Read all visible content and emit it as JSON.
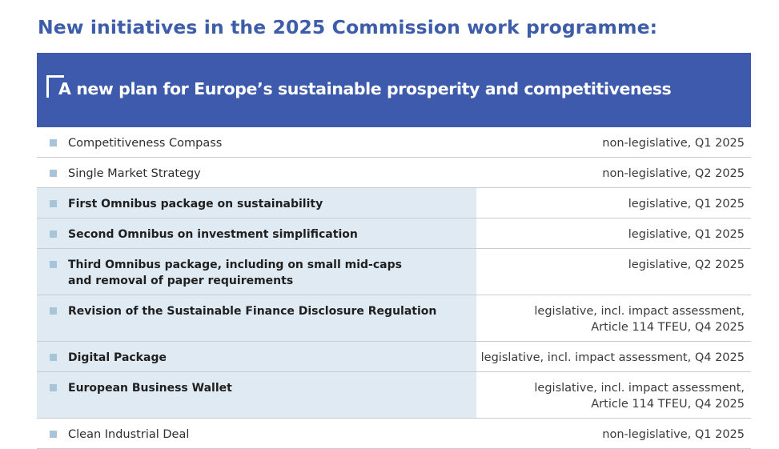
{
  "page": {
    "title": "New initiatives in the 2025 Commission work programme:"
  },
  "banner": {
    "title": "A new plan for Europe’s sustainable prosperity and competitiveness"
  },
  "colors": {
    "title_blue": "#3d5daa",
    "banner_blue": "#3e5aad",
    "shade": "#dfeaf3",
    "bullet": "#a7c4d8"
  },
  "rows": [
    {
      "label": "Competitiveness Compass",
      "status": "non-legislative, Q1 2025",
      "highlighted": false
    },
    {
      "label": "Single Market Strategy",
      "status": "non-legislative, Q2 2025",
      "highlighted": false
    },
    {
      "label": "First Omnibus package on sustainability",
      "status": "legislative, Q1 2025",
      "highlighted": true
    },
    {
      "label": "Second Omnibus on investment simplification",
      "status": "legislative, Q1 2025",
      "highlighted": true
    },
    {
      "label": "Third Omnibus package, including on small mid-caps\nand removal of paper requirements",
      "status": "legislative, Q2 2025",
      "highlighted": true
    },
    {
      "label": "Revision of the Sustainable Finance Disclosure Regulation",
      "status": "legislative, incl. impact assessment,\nArticle 114 TFEU, Q4 2025",
      "highlighted": true
    },
    {
      "label": "Digital Package",
      "status": "legislative, incl. impact assessment, Q4 2025",
      "highlighted": true
    },
    {
      "label": "European Business Wallet",
      "status": "legislative, incl. impact assessment,\nArticle 114 TFEU, Q4 2025",
      "highlighted": true
    },
    {
      "label": "Clean Industrial Deal",
      "status": "non-legislative, Q1 2025",
      "highlighted": false
    }
  ]
}
